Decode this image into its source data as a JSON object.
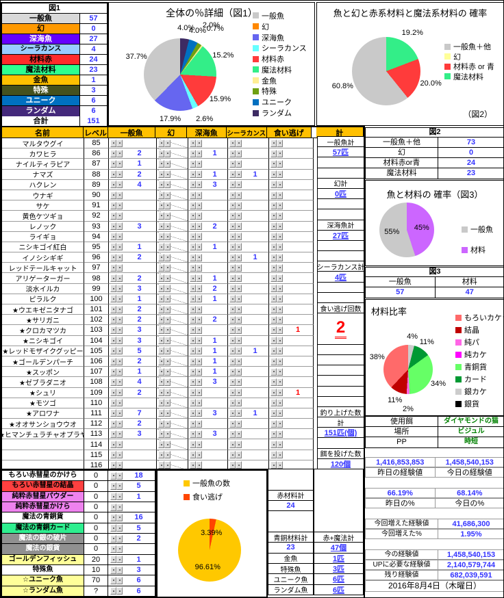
{
  "fig1_table": {
    "title": "図1",
    "rows": [
      {
        "label": "一般魚",
        "value": "57",
        "bg": "#D9D9D9",
        "fg": "#000000"
      },
      {
        "label": "幻",
        "value": "0",
        "bg": "#FF9900",
        "fg": "#000000"
      },
      {
        "label": "深海魚",
        "value": "27",
        "bg": "#6600FF",
        "fg": "#FFFFFF"
      },
      {
        "label": "シーラカンス",
        "value": "4",
        "bg": "#99CCFF",
        "fg": "#000000"
      },
      {
        "label": "材料赤",
        "value": "24",
        "bg": "#FF2A2A",
        "fg": "#000000"
      },
      {
        "label": "魔法材料",
        "value": "23",
        "bg": "#2EFF8F",
        "fg": "#000000"
      },
      {
        "label": "金魚",
        "value": "1",
        "bg": "#FFC000",
        "fg": "#000000"
      },
      {
        "label": "特殊",
        "value": "3",
        "bg": "#44511E",
        "fg": "#FFFFFF"
      },
      {
        "label": "ユニーク",
        "value": "6",
        "bg": "#0070C0",
        "fg": "#FFFFFF"
      },
      {
        "label": "ランダム",
        "value": "6",
        "bg": "#44297B",
        "fg": "#FFFFFF"
      }
    ],
    "total_label": "合計",
    "total": "151"
  },
  "chart_data": [
    {
      "id": "fig1",
      "type": "pie",
      "title": "全体の％詳細（図1）",
      "labels": [
        "一般魚",
        "幻",
        "深海魚",
        "シーラカンス",
        "材料赤",
        "魔法材料",
        "金魚",
        "特殊",
        "ユニーク",
        "ランダム"
      ],
      "values": [
        37.7,
        0,
        17.9,
        2.6,
        15.9,
        15.2,
        0.7,
        2.0,
        4.0,
        4.0
      ],
      "display": [
        "37.7%",
        "",
        "17.9%",
        "2.6%",
        "15.9%",
        "15.2%",
        "0.7%",
        "2.0%",
        "4.0%",
        "4.0%"
      ],
      "colors": [
        "#C9C9C9",
        "#FF8800",
        "#6666F0",
        "#66FFFF",
        "#FF3B3B",
        "#33EE88",
        "#FFEE94",
        "#6FA012",
        "#0070C0",
        "#3D2B63"
      ],
      "label_position": "outside",
      "legend_position": "right",
      "direction": "ccw"
    },
    {
      "id": "fig2",
      "type": "pie",
      "title": "魚と幻と赤系材料と魔法系材料の 確率",
      "labels": [
        "一般魚＋他",
        "幻",
        "材料赤 or 青",
        "魔法材料"
      ],
      "values": [
        60.8,
        0,
        20.0,
        19.2
      ],
      "display": [
        "60.8%",
        "",
        "20.0%",
        "19.2%"
      ],
      "colors": [
        "#C9C9C9",
        "#FFFF99",
        "#FF3B3B",
        "#33EE88"
      ],
      "caption": "（図2）",
      "label_position": "outside",
      "legend_position": "right",
      "direction": "ccw"
    },
    {
      "id": "fig3",
      "type": "pie",
      "title": "魚と材料の 確率（図3）",
      "labels": [
        "一般魚",
        "材料"
      ],
      "values": [
        55,
        45
      ],
      "display": [
        "55%",
        "45%"
      ],
      "colors": [
        "#C9C9C9",
        "#CC66FF"
      ],
      "label_position": "inside",
      "legend_position": "right",
      "direction": "ccw"
    },
    {
      "id": "materials",
      "type": "pie",
      "title": "材料比率",
      "labels": [
        "もろいカケラ",
        "結晶",
        "純パ",
        "純カケ",
        "青銅貨",
        "カード",
        "銀カケ",
        "銀貨"
      ],
      "values": [
        38,
        11,
        2,
        0,
        34,
        11,
        4,
        0
      ],
      "display": [
        "38%",
        "11%",
        "2%",
        "",
        "34%",
        "11%",
        "4%",
        ""
      ],
      "colors": [
        "#FF6A6A",
        "#C00000",
        "#FF66E6",
        "#FF00FF",
        "#66FF66",
        "#009933",
        "#CCCCCC",
        "#000000"
      ],
      "label_position": "outside",
      "legend_position": "right",
      "direction": "ccw"
    },
    {
      "id": "catch",
      "type": "pie",
      "title": "",
      "labels": [
        "一般魚の数",
        "食い逃げ"
      ],
      "values": [
        96.61,
        3.39
      ],
      "display": [
        "96.61%",
        "3.39%"
      ],
      "colors": [
        "#FFC800",
        "#FF4500"
      ],
      "label_position": "inside",
      "legend_position": "top-right",
      "direction": "ccw"
    }
  ],
  "main_table": {
    "headers": {
      "name": "名前",
      "level": "レベル",
      "cols": [
        "一般魚",
        "幻",
        "深海魚",
        "シーラカンス",
        "食い逃げ"
      ],
      "kei": "計"
    },
    "rows": [
      [
        "マルタウグイ",
        "85",
        "",
        "",
        "",
        "",
        ""
      ],
      [
        "カワヒラ",
        "86",
        "2",
        "",
        "1",
        "",
        ""
      ],
      [
        "ナイルティラピア",
        "87",
        "1",
        "",
        "",
        "",
        ""
      ],
      [
        "ナマズ",
        "88",
        "2",
        "",
        "1",
        "1",
        ""
      ],
      [
        "ハクレン",
        "89",
        "4",
        "",
        "3",
        "",
        ""
      ],
      [
        "ウナギ",
        "90",
        "",
        "",
        "",
        "",
        ""
      ],
      [
        "サケ",
        "91",
        "",
        "",
        "",
        "",
        ""
      ],
      [
        "黄色ケツギョ",
        "92",
        "",
        "",
        "",
        "",
        ""
      ],
      [
        "レノック",
        "93",
        "3",
        "",
        "2",
        "",
        ""
      ],
      [
        "ライギョ",
        "94",
        "",
        "",
        "",
        "",
        ""
      ],
      [
        "ニシキゴイ紅白",
        "95",
        "1",
        "",
        "1",
        "",
        ""
      ],
      [
        "イノシシギギ",
        "96",
        "2",
        "",
        "",
        "1",
        ""
      ],
      [
        "レッドテールキャット",
        "97",
        "",
        "",
        "",
        "",
        ""
      ],
      [
        "アリゲーターガー",
        "98",
        "2",
        "",
        "1",
        "",
        ""
      ],
      [
        "淡水イルカ",
        "99",
        "3",
        "",
        "2",
        "",
        ""
      ],
      [
        "ピラルク",
        "100",
        "1",
        "",
        "1",
        "",
        ""
      ],
      [
        "★ウエキゼニタナゴ",
        "101",
        "2",
        "",
        "",
        "",
        ""
      ],
      [
        "★サリガニ",
        "102",
        "2",
        "",
        "2",
        "",
        ""
      ],
      [
        "★クロカマツカ",
        "103",
        "3",
        "",
        "",
        "",
        "1"
      ],
      [
        "★ニシキゴイ",
        "104",
        "3",
        "",
        "1",
        "",
        ""
      ],
      [
        "★レッドモザイクグッピー",
        "105",
        "5",
        "",
        "1",
        "1",
        ""
      ],
      [
        "★ゴールデンパーチ",
        "106",
        "2",
        "",
        "1",
        "",
        ""
      ],
      [
        "★スッポン",
        "107",
        "1",
        "",
        "1",
        "",
        ""
      ],
      [
        "★ゼブラダニオ",
        "108",
        "4",
        "",
        "3",
        "",
        ""
      ],
      [
        "★シュリ",
        "109",
        "2",
        "",
        "",
        "",
        "1"
      ],
      [
        "★モツゴ",
        "110",
        "",
        "",
        "",
        "",
        ""
      ],
      [
        "★アロワナ",
        "111",
        "7",
        "",
        "3",
        "1",
        ""
      ],
      [
        "★オオサンショウウオ",
        "112",
        "2",
        "",
        "",
        "",
        ""
      ],
      [
        "★ヒマンチュラチャオプラヤ",
        "113",
        "3",
        "",
        "3",
        "",
        ""
      ],
      [
        "",
        "114",
        "",
        "",
        "",
        "",
        ""
      ],
      [
        "",
        "115",
        "",
        "",
        "",
        "",
        ""
      ],
      [
        "",
        "116",
        "",
        "",
        "",
        "",
        ""
      ]
    ],
    "kei_column": [
      {
        "t": "一般魚計",
        "s": "p"
      },
      {
        "t": "57匹",
        "s": "l"
      },
      {
        "t": "",
        "s": "p"
      },
      {
        "t": "",
        "s": "p"
      },
      {
        "t": "幻計",
        "s": "p"
      },
      {
        "t": "0匹",
        "s": "l"
      },
      {
        "t": "",
        "s": "p"
      },
      {
        "t": "",
        "s": "p"
      },
      {
        "t": "深海魚計",
        "s": "p"
      },
      {
        "t": "27匹",
        "s": "l"
      },
      {
        "t": "",
        "s": "p"
      },
      {
        "t": "",
        "s": "p"
      },
      {
        "t": "シーラカンス計",
        "s": "p"
      },
      {
        "t": "4匹",
        "s": "l"
      },
      {
        "t": "",
        "s": "p"
      },
      {
        "t": "",
        "s": "p"
      },
      {
        "t": "食い逃げ回数",
        "s": "p"
      },
      {
        "t": "2",
        "s": "b",
        "span": 3
      },
      {
        "t": "",
        "s": "p"
      },
      {
        "t": "",
        "s": "p"
      },
      {
        "t": "",
        "s": "p"
      },
      {
        "t": "",
        "s": "p"
      },
      {
        "t": "",
        "s": "p"
      },
      {
        "t": "",
        "s": "p"
      },
      {
        "t": "釣り上げた数",
        "s": "p"
      },
      {
        "t": "計",
        "s": "p"
      },
      {
        "t": "151匹(個)",
        "s": "l"
      },
      {
        "t": "",
        "s": "p"
      },
      {
        "t": "餌を投げた数",
        "s": "p"
      },
      {
        "t": "120個",
        "s": "l"
      }
    ]
  },
  "bottom_table": {
    "rows": [
      {
        "label": "もろい赤彗星のかけら",
        "bg": "#FFFFFF",
        "fg": "#000000",
        "level": "0",
        "count": "18"
      },
      {
        "label": "もろい赤彗星の結晶",
        "bg": "#FF4040",
        "fg": "#000000",
        "level": "0",
        "count": "5"
      },
      {
        "label": "純粋赤彗星パウダー",
        "bg": "#EE82EE",
        "fg": "#000000",
        "level": "0",
        "count": "1"
      },
      {
        "label": "純粋赤彗星かけら",
        "bg": "#EE82EE",
        "fg": "#000000",
        "level": "0",
        "count": ""
      },
      {
        "label": "魔法の青銅貨",
        "bg": "#FFFFFF",
        "fg": "#000000",
        "level": "0",
        "count": "16"
      },
      {
        "label": "魔法の青銅カード",
        "bg": "#2EEE8F",
        "fg": "#000000",
        "level": "0",
        "count": "5"
      },
      {
        "label": "魔法の銀の破片",
        "bg": "#909090",
        "fg": "#FFFFFF",
        "level": "0",
        "count": "2"
      },
      {
        "label": "魔法の銀貨",
        "bg": "#909090",
        "fg": "#FFFFFF",
        "level": "0",
        "count": ""
      },
      {
        "label": "ゴールデンフィッシュ",
        "bg": "#FFFF99",
        "fg": "#000000",
        "level": "20",
        "count": "1"
      },
      {
        "label": "特殊魚",
        "bg": "#FFFFFF",
        "fg": "#000000",
        "level": "10",
        "count": "3"
      },
      {
        "label": "☆ユニーク魚",
        "bg": "#FFFF99",
        "fg": "#000000",
        "level": "70",
        "count": "6"
      },
      {
        "label": "☆ランダム魚",
        "bg": "#FFFF99",
        "fg": "#000000",
        "level": "?",
        "count": "6"
      }
    ]
  },
  "bottom_summary": {
    "col_a": [
      {
        "t": "",
        "diag": 1,
        "span": 2
      },
      {
        "t": "赤材料計"
      },
      {
        "t": "24",
        "s": "n"
      },
      {
        "t": "",
        "diag": 1,
        "span": 2
      },
      {
        "t": "青銅材料計"
      },
      {
        "t": "23",
        "s": "n"
      },
      {
        "t": "金魚"
      },
      {
        "t": "特殊魚"
      },
      {
        "t": "ユニーク魚"
      },
      {
        "t": "ランダム魚"
      }
    ],
    "col_b": [
      {
        "t": "",
        "diag": 1,
        "span": 6
      },
      {
        "t": "赤+魔法計"
      },
      {
        "t": "47個",
        "s": "l"
      },
      {
        "t": "1匹",
        "s": "l"
      },
      {
        "t": "3匹",
        "s": "l"
      },
      {
        "t": "6匹",
        "s": "l"
      },
      {
        "t": "6匹",
        "s": "l"
      }
    ]
  },
  "right_panel": {
    "fig2_table": {
      "title": "図2",
      "rows": [
        [
          "一般魚＋他",
          "73"
        ],
        [
          "幻",
          "0"
        ],
        [
          "材料赤or青",
          "24"
        ],
        [
          "魔法材料",
          "23"
        ]
      ]
    },
    "fig3_table": {
      "title": "図3",
      "headers": [
        "一般魚",
        "材料"
      ],
      "values": [
        "57",
        "47"
      ]
    },
    "info_rows": [
      [
        "使用餌",
        "ダイヤモンドの猫"
      ],
      [
        "場所",
        "ビジュル"
      ],
      [
        "PP",
        "時短"
      ]
    ],
    "exp": {
      "values": [
        "1,416,853,853",
        "1,458,540,153"
      ],
      "value_labels": [
        "昨日の経験値",
        "今日の経験値"
      ],
      "pcts": [
        "66.19%",
        "68.14%"
      ],
      "pct_labels": [
        "昨日の%",
        "今日の%"
      ],
      "gained_rows": [
        [
          "今回増えた経験値",
          "41,686,300"
        ],
        [
          "今回増えた%",
          "1.95%"
        ]
      ],
      "current_rows": [
        [
          "今の経験値",
          "1,458,540,153"
        ],
        [
          "UPに必要な経験値",
          "2,140,579,744"
        ],
        [
          "残り経験値",
          "682,039,591"
        ]
      ],
      "date": "2016年8月4日（木曜日）"
    }
  }
}
